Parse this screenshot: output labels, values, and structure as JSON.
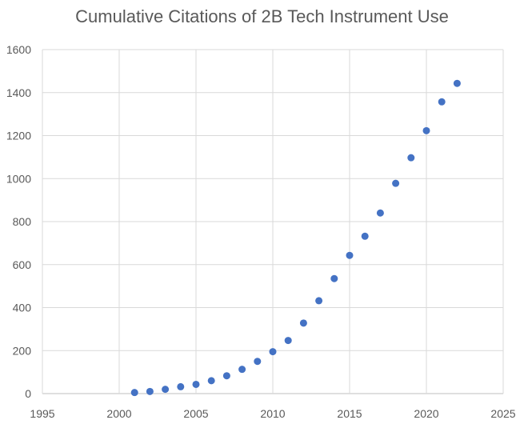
{
  "chart_data": {
    "type": "scatter",
    "title": "Cumulative Citations of 2B Tech Instrument Use",
    "xlabel": "",
    "ylabel": "",
    "xlim": [
      1995,
      2025
    ],
    "ylim": [
      0,
      1600
    ],
    "x_ticks": [
      1995,
      2000,
      2005,
      2010,
      2015,
      2020,
      2025
    ],
    "y_ticks": [
      0,
      200,
      400,
      600,
      800,
      1000,
      1200,
      1400,
      1600
    ],
    "grid": true,
    "legend": "none",
    "marker_color": "#4472c4",
    "series": [
      {
        "x": [
          2001,
          2002,
          2003,
          2004,
          2005,
          2006,
          2007,
          2008,
          2009,
          2010,
          2011,
          2012,
          2013,
          2014,
          2015,
          2016,
          2017,
          2018,
          2019,
          2020,
          2021,
          2022
        ],
        "y": [
          5,
          10,
          20,
          32,
          43,
          60,
          83,
          113,
          150,
          195,
          247,
          328,
          432,
          535,
          643,
          732,
          840,
          978,
          1097,
          1223,
          1357,
          1443
        ]
      }
    ]
  }
}
